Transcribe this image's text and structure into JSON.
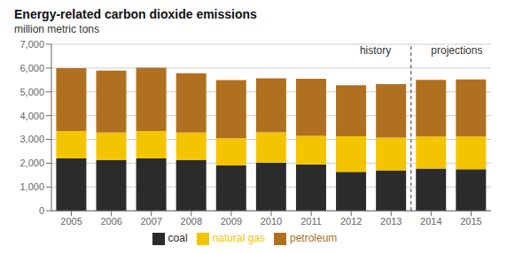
{
  "chart_data": {
    "type": "bar",
    "stacked": true,
    "title": "Energy-related carbon dioxide emissions",
    "subtitle": "million metric tons",
    "categories": [
      "2005",
      "2006",
      "2007",
      "2008",
      "2009",
      "2010",
      "2011",
      "2012",
      "2013",
      "2014",
      "2015"
    ],
    "series": [
      {
        "name": "coal",
        "color": "#2b2b2b",
        "values": [
          2200,
          2130,
          2200,
          2130,
          1900,
          2020,
          1950,
          1630,
          1700,
          1770,
          1750
        ]
      },
      {
        "name": "natural gas",
        "color": "#f5c400",
        "values": [
          1150,
          1160,
          1150,
          1160,
          1150,
          1280,
          1200,
          1500,
          1380,
          1350,
          1370
        ]
      },
      {
        "name": "petroleum",
        "color": "#b07020",
        "values": [
          2650,
          2600,
          2660,
          2490,
          2440,
          2270,
          2400,
          2150,
          2250,
          2380,
          2400
        ]
      }
    ],
    "ylim": [
      0,
      7000
    ],
    "yticks": [
      0,
      {
        "value": 1000,
        "label": "1,000"
      },
      {
        "value": 2000,
        "label": "2,000"
      },
      {
        "value": 3000,
        "label": "3,000"
      },
      {
        "value": 4000,
        "label": "4,000"
      },
      {
        "value": 5000,
        "label": "5,000"
      },
      {
        "value": 6000,
        "label": "6,000"
      },
      {
        "value": 7000,
        "label": "7,000"
      }
    ],
    "grid": true,
    "legend": "bottom",
    "annotations": [
      {
        "text": "history",
        "x": "2013",
        "y": 6750,
        "align": "right"
      },
      {
        "text": "projections",
        "x": "2014",
        "y": 6750,
        "align": "left"
      }
    ],
    "divider": {
      "after": "2013",
      "line_style": "dashed"
    }
  }
}
